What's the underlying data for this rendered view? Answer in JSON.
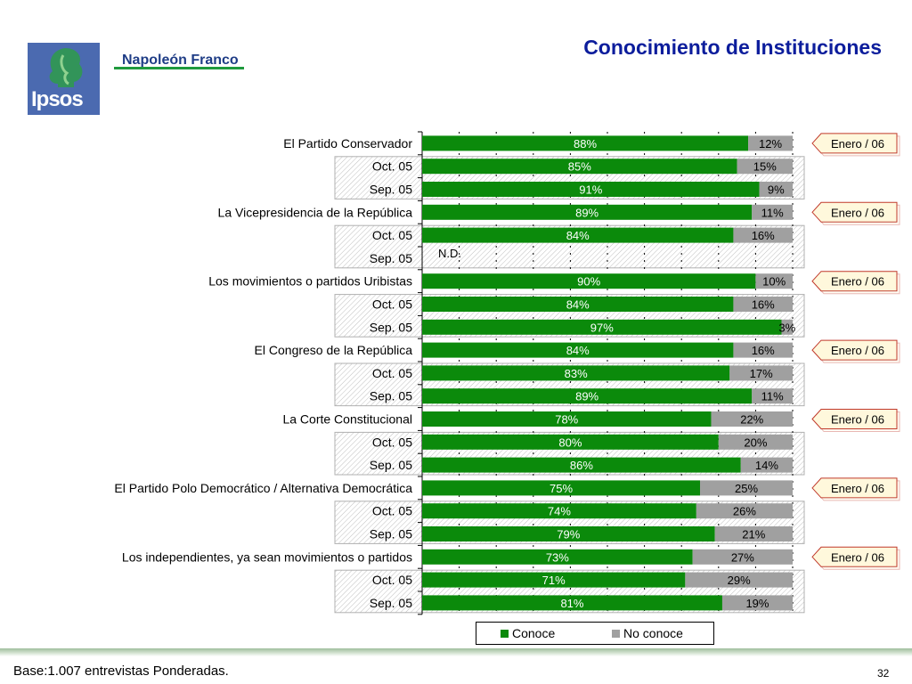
{
  "header": {
    "title": "Conocimiento de Instituciones",
    "brand": "Napoleón Franco",
    "logo_text": "Ipsos"
  },
  "footer": {
    "base_note": "Base:1.007 entrevistas Ponderadas.",
    "page_number": "32"
  },
  "colors": {
    "conoce": "#0b8a0b",
    "no_conoce": "#a0a0a0",
    "title": "#0c1d9c",
    "badge_border": "#c0392b",
    "badge_fill": "#fff8dc",
    "logo_blue": "#4b6ab0",
    "brand_green": "#1f9a3d"
  },
  "chart_data": {
    "type": "bar",
    "orientation": "horizontal",
    "stacked": true,
    "percent_scale": [
      0,
      100
    ],
    "grid": true,
    "legend_position": "bottom",
    "series_names": [
      "Conoce",
      "No conoce"
    ],
    "row_badge_label": "Enero / 06",
    "missing_label": "N.D.",
    "groups": [
      {
        "name": "El Partido Conservador",
        "rows": [
          {
            "period": "El Partido Conservador",
            "conoce": 88,
            "no_conoce": 12,
            "badge": true
          },
          {
            "period": "Oct. 05",
            "conoce": 85,
            "no_conoce": 15
          },
          {
            "period": "Sep. 05",
            "conoce": 91,
            "no_conoce": 9
          }
        ]
      },
      {
        "name": "La Vicepresidencia de la República",
        "rows": [
          {
            "period": "La Vicepresidencia de la República",
            "conoce": 89,
            "no_conoce": 11,
            "badge": true
          },
          {
            "period": "Oct. 05",
            "conoce": 84,
            "no_conoce": 16
          },
          {
            "period": "Sep. 05",
            "conoce": null,
            "no_conoce": null
          }
        ]
      },
      {
        "name": "Los movimientos o partidos Uribistas",
        "rows": [
          {
            "period": "Los movimientos o partidos Uribistas",
            "conoce": 90,
            "no_conoce": 10,
            "badge": true
          },
          {
            "period": "Oct. 05",
            "conoce": 84,
            "no_conoce": 16
          },
          {
            "period": "Sep. 05",
            "conoce": 97,
            "no_conoce": 3
          }
        ]
      },
      {
        "name": "El Congreso de la República",
        "rows": [
          {
            "period": "El Congreso de la República",
            "conoce": 84,
            "no_conoce": 16,
            "badge": true
          },
          {
            "period": "Oct. 05",
            "conoce": 83,
            "no_conoce": 17
          },
          {
            "period": "Sep. 05",
            "conoce": 89,
            "no_conoce": 11
          }
        ]
      },
      {
        "name": "La Corte Constitucional",
        "rows": [
          {
            "period": "La Corte Constitucional",
            "conoce": 78,
            "no_conoce": 22,
            "badge": true
          },
          {
            "period": "Oct. 05",
            "conoce": 80,
            "no_conoce": 20
          },
          {
            "period": "Sep. 05",
            "conoce": 86,
            "no_conoce": 14
          }
        ]
      },
      {
        "name": "El Partido Polo Democrático / Alternativa Democrática",
        "rows": [
          {
            "period": "El Partido Polo Democrático / Alternativa Democrática",
            "conoce": 75,
            "no_conoce": 25,
            "badge": true
          },
          {
            "period": "Oct. 05",
            "conoce": 74,
            "no_conoce": 26
          },
          {
            "period": "Sep. 05",
            "conoce": 79,
            "no_conoce": 21
          }
        ]
      },
      {
        "name": "Los independientes, ya sean movimientos o partidos",
        "rows": [
          {
            "period": "Los independientes, ya sean movimientos o partidos",
            "conoce": 73,
            "no_conoce": 27,
            "badge": true
          },
          {
            "period": "Oct. 05",
            "conoce": 71,
            "no_conoce": 29
          },
          {
            "period": "Sep. 05",
            "conoce": 81,
            "no_conoce": 19
          }
        ]
      }
    ]
  }
}
